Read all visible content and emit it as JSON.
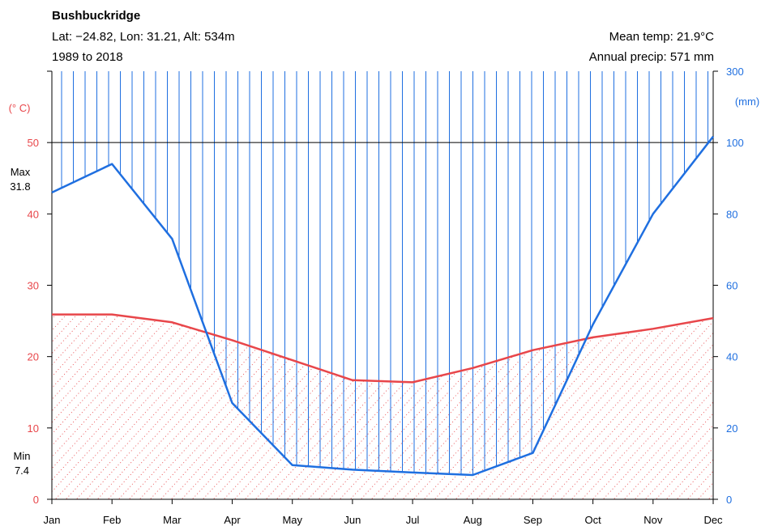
{
  "header": {
    "title": "Bushbuckridge",
    "location": "Lat: −24.82, Lon: 31.21, Alt: 534m",
    "period": "1989 to 2018",
    "mean_temp": "Mean temp: 21.9°C",
    "annual_precip": "Annual precip: 571 mm"
  },
  "colors": {
    "temperature": "#e8464a",
    "precipitation": "#1f6fe0",
    "reference_line": "#000000"
  },
  "chart_data": {
    "type": "line",
    "categories": [
      "Jan",
      "Feb",
      "Mar",
      "Apr",
      "May",
      "Jun",
      "Jul",
      "Aug",
      "Sep",
      "Oct",
      "Nov",
      "Dec"
    ],
    "series": [
      {
        "axis": "left",
        "values": [
          25.9,
          25.9,
          24.8,
          22.3,
          19.5,
          16.7,
          16.4,
          18.4,
          20.9,
          22.7,
          23.9,
          25.4
        ]
      },
      {
        "axis": "right",
        "values": [
          86,
          94,
          73,
          27,
          9.6,
          8.3,
          7.5,
          6.8,
          13,
          49,
          80,
          117
        ]
      }
    ],
    "left_axis": {
      "unit": "(° C)",
      "ticks": [
        "0",
        "10",
        "20",
        "30",
        "40",
        "50"
      ],
      "ylim": [
        0,
        60
      ]
    },
    "right_axis": {
      "unit": "(mm)",
      "ticks": [
        "0",
        "20",
        "40",
        "60",
        "80",
        "100",
        "300"
      ],
      "ylim": [
        0,
        300
      ],
      "scale_change_at": 100
    },
    "reference_line": 50,
    "extremes": {
      "max_label": "Max",
      "max_value": "31.8",
      "min_label": "Min",
      "min_value": "7.4"
    }
  }
}
